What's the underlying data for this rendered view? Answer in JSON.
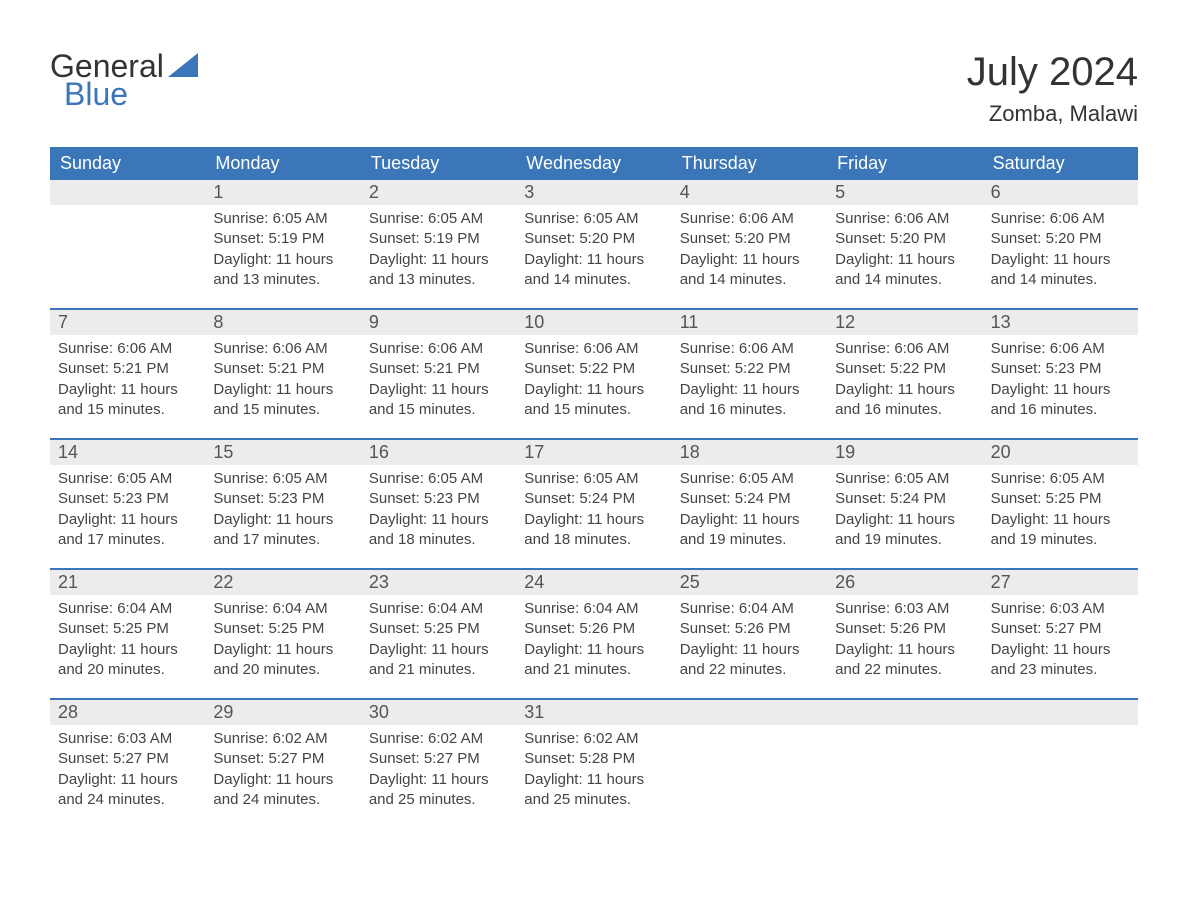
{
  "brand": {
    "word1": "General",
    "word2": "Blue",
    "accent_color": "#3b77b8"
  },
  "header": {
    "title": "July 2024",
    "location": "Zomba, Malawi"
  },
  "colors": {
    "header_bg": "#3b77b8",
    "header_text": "#ffffff",
    "daynum_bg": "#ececec",
    "border": "#3b77b8",
    "text": "#333333"
  },
  "weekdays": [
    "Sunday",
    "Monday",
    "Tuesday",
    "Wednesday",
    "Thursday",
    "Friday",
    "Saturday"
  ],
  "weeks": [
    [
      null,
      {
        "n": "1",
        "sunrise": "Sunrise: 6:05 AM",
        "sunset": "Sunset: 5:19 PM",
        "day1": "Daylight: 11 hours",
        "day2": "and 13 minutes."
      },
      {
        "n": "2",
        "sunrise": "Sunrise: 6:05 AM",
        "sunset": "Sunset: 5:19 PM",
        "day1": "Daylight: 11 hours",
        "day2": "and 13 minutes."
      },
      {
        "n": "3",
        "sunrise": "Sunrise: 6:05 AM",
        "sunset": "Sunset: 5:20 PM",
        "day1": "Daylight: 11 hours",
        "day2": "and 14 minutes."
      },
      {
        "n": "4",
        "sunrise": "Sunrise: 6:06 AM",
        "sunset": "Sunset: 5:20 PM",
        "day1": "Daylight: 11 hours",
        "day2": "and 14 minutes."
      },
      {
        "n": "5",
        "sunrise": "Sunrise: 6:06 AM",
        "sunset": "Sunset: 5:20 PM",
        "day1": "Daylight: 11 hours",
        "day2": "and 14 minutes."
      },
      {
        "n": "6",
        "sunrise": "Sunrise: 6:06 AM",
        "sunset": "Sunset: 5:20 PM",
        "day1": "Daylight: 11 hours",
        "day2": "and 14 minutes."
      }
    ],
    [
      {
        "n": "7",
        "sunrise": "Sunrise: 6:06 AM",
        "sunset": "Sunset: 5:21 PM",
        "day1": "Daylight: 11 hours",
        "day2": "and 15 minutes."
      },
      {
        "n": "8",
        "sunrise": "Sunrise: 6:06 AM",
        "sunset": "Sunset: 5:21 PM",
        "day1": "Daylight: 11 hours",
        "day2": "and 15 minutes."
      },
      {
        "n": "9",
        "sunrise": "Sunrise: 6:06 AM",
        "sunset": "Sunset: 5:21 PM",
        "day1": "Daylight: 11 hours",
        "day2": "and 15 minutes."
      },
      {
        "n": "10",
        "sunrise": "Sunrise: 6:06 AM",
        "sunset": "Sunset: 5:22 PM",
        "day1": "Daylight: 11 hours",
        "day2": "and 15 minutes."
      },
      {
        "n": "11",
        "sunrise": "Sunrise: 6:06 AM",
        "sunset": "Sunset: 5:22 PM",
        "day1": "Daylight: 11 hours",
        "day2": "and 16 minutes."
      },
      {
        "n": "12",
        "sunrise": "Sunrise: 6:06 AM",
        "sunset": "Sunset: 5:22 PM",
        "day1": "Daylight: 11 hours",
        "day2": "and 16 minutes."
      },
      {
        "n": "13",
        "sunrise": "Sunrise: 6:06 AM",
        "sunset": "Sunset: 5:23 PM",
        "day1": "Daylight: 11 hours",
        "day2": "and 16 minutes."
      }
    ],
    [
      {
        "n": "14",
        "sunrise": "Sunrise: 6:05 AM",
        "sunset": "Sunset: 5:23 PM",
        "day1": "Daylight: 11 hours",
        "day2": "and 17 minutes."
      },
      {
        "n": "15",
        "sunrise": "Sunrise: 6:05 AM",
        "sunset": "Sunset: 5:23 PM",
        "day1": "Daylight: 11 hours",
        "day2": "and 17 minutes."
      },
      {
        "n": "16",
        "sunrise": "Sunrise: 6:05 AM",
        "sunset": "Sunset: 5:23 PM",
        "day1": "Daylight: 11 hours",
        "day2": "and 18 minutes."
      },
      {
        "n": "17",
        "sunrise": "Sunrise: 6:05 AM",
        "sunset": "Sunset: 5:24 PM",
        "day1": "Daylight: 11 hours",
        "day2": "and 18 minutes."
      },
      {
        "n": "18",
        "sunrise": "Sunrise: 6:05 AM",
        "sunset": "Sunset: 5:24 PM",
        "day1": "Daylight: 11 hours",
        "day2": "and 19 minutes."
      },
      {
        "n": "19",
        "sunrise": "Sunrise: 6:05 AM",
        "sunset": "Sunset: 5:24 PM",
        "day1": "Daylight: 11 hours",
        "day2": "and 19 minutes."
      },
      {
        "n": "20",
        "sunrise": "Sunrise: 6:05 AM",
        "sunset": "Sunset: 5:25 PM",
        "day1": "Daylight: 11 hours",
        "day2": "and 19 minutes."
      }
    ],
    [
      {
        "n": "21",
        "sunrise": "Sunrise: 6:04 AM",
        "sunset": "Sunset: 5:25 PM",
        "day1": "Daylight: 11 hours",
        "day2": "and 20 minutes."
      },
      {
        "n": "22",
        "sunrise": "Sunrise: 6:04 AM",
        "sunset": "Sunset: 5:25 PM",
        "day1": "Daylight: 11 hours",
        "day2": "and 20 minutes."
      },
      {
        "n": "23",
        "sunrise": "Sunrise: 6:04 AM",
        "sunset": "Sunset: 5:25 PM",
        "day1": "Daylight: 11 hours",
        "day2": "and 21 minutes."
      },
      {
        "n": "24",
        "sunrise": "Sunrise: 6:04 AM",
        "sunset": "Sunset: 5:26 PM",
        "day1": "Daylight: 11 hours",
        "day2": "and 21 minutes."
      },
      {
        "n": "25",
        "sunrise": "Sunrise: 6:04 AM",
        "sunset": "Sunset: 5:26 PM",
        "day1": "Daylight: 11 hours",
        "day2": "and 22 minutes."
      },
      {
        "n": "26",
        "sunrise": "Sunrise: 6:03 AM",
        "sunset": "Sunset: 5:26 PM",
        "day1": "Daylight: 11 hours",
        "day2": "and 22 minutes."
      },
      {
        "n": "27",
        "sunrise": "Sunrise: 6:03 AM",
        "sunset": "Sunset: 5:27 PM",
        "day1": "Daylight: 11 hours",
        "day2": "and 23 minutes."
      }
    ],
    [
      {
        "n": "28",
        "sunrise": "Sunrise: 6:03 AM",
        "sunset": "Sunset: 5:27 PM",
        "day1": "Daylight: 11 hours",
        "day2": "and 24 minutes."
      },
      {
        "n": "29",
        "sunrise": "Sunrise: 6:02 AM",
        "sunset": "Sunset: 5:27 PM",
        "day1": "Daylight: 11 hours",
        "day2": "and 24 minutes."
      },
      {
        "n": "30",
        "sunrise": "Sunrise: 6:02 AM",
        "sunset": "Sunset: 5:27 PM",
        "day1": "Daylight: 11 hours",
        "day2": "and 25 minutes."
      },
      {
        "n": "31",
        "sunrise": "Sunrise: 6:02 AM",
        "sunset": "Sunset: 5:28 PM",
        "day1": "Daylight: 11 hours",
        "day2": "and 25 minutes."
      },
      null,
      null,
      null
    ]
  ]
}
